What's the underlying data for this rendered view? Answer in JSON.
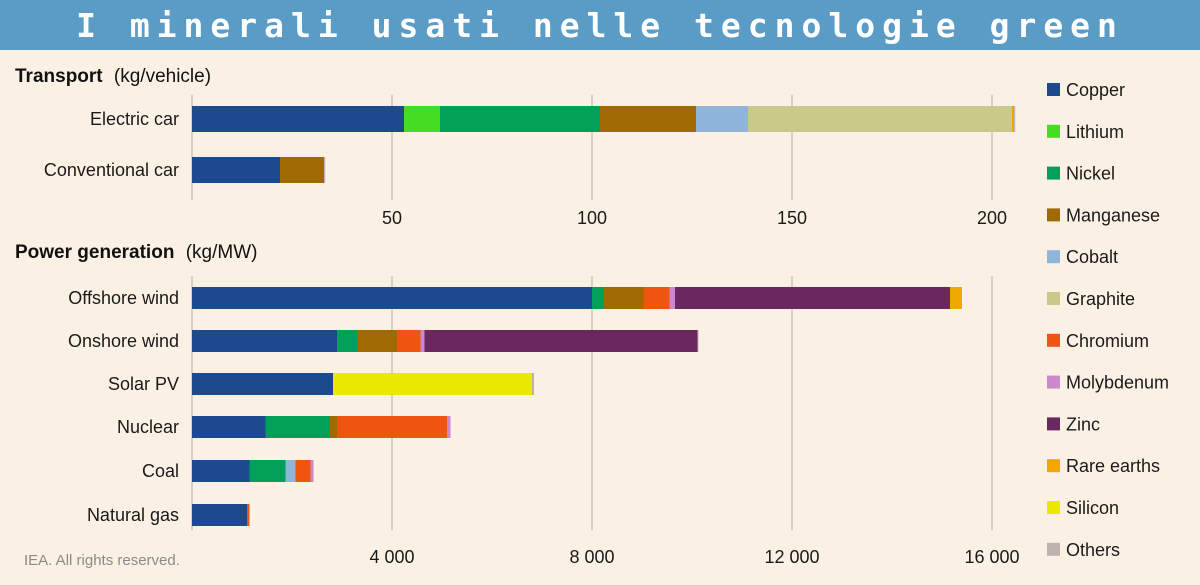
{
  "header": {
    "title": "I minerali usati nelle tecnologie green"
  },
  "footer": {
    "text": "IEA. All rights reserved."
  },
  "colors": {
    "Copper": "#1b4a8f",
    "Lithium": "#44dd22",
    "Nickel": "#00a058",
    "Manganese": "#a06a00",
    "Cobalt": "#8fb5db",
    "Graphite": "#c8c98a",
    "Chromium": "#ee5511",
    "Molybdenum": "#cc88cc",
    "Zinc": "#6b2860",
    "Rare earths": "#f0a800",
    "Silicon": "#eaea00",
    "Others": "#bdb5ad",
    "gridline": "#cfc4b8"
  },
  "legend": {
    "position": "right",
    "items": [
      "Copper",
      "Lithium",
      "Nickel",
      "Manganese",
      "Cobalt",
      "Graphite",
      "Chromium",
      "Molybdenum",
      "Zinc",
      "Rare earths",
      "Silicon",
      "Others"
    ]
  },
  "chart_data": [
    {
      "type": "bar",
      "orientation": "horizontal",
      "stacked": true,
      "title_bold": "Transport",
      "title_unit": "(kg/vehicle)",
      "xlim": [
        0,
        210
      ],
      "xticks": [
        50,
        100,
        150,
        200
      ],
      "xtick_labels": [
        "50",
        "100",
        "150",
        "200"
      ],
      "grid": true,
      "categories": [
        "Electric car",
        "Conventional car"
      ],
      "series": [
        {
          "name": "Copper",
          "values": [
            53,
            22
          ]
        },
        {
          "name": "Lithium",
          "values": [
            9,
            0
          ]
        },
        {
          "name": "Nickel",
          "values": [
            40,
            0
          ]
        },
        {
          "name": "Manganese",
          "values": [
            24,
            11
          ]
        },
        {
          "name": "Cobalt",
          "values": [
            13,
            0
          ]
        },
        {
          "name": "Graphite",
          "values": [
            66,
            0
          ]
        },
        {
          "name": "Chromium",
          "values": [
            0,
            0
          ]
        },
        {
          "name": "Molybdenum",
          "values": [
            0,
            0
          ]
        },
        {
          "name": "Zinc",
          "values": [
            0,
            0
          ]
        },
        {
          "name": "Rare earths",
          "values": [
            0.5,
            0
          ]
        },
        {
          "name": "Silicon",
          "values": [
            0,
            0
          ]
        },
        {
          "name": "Others",
          "values": [
            0.3,
            0.3
          ]
        }
      ]
    },
    {
      "type": "bar",
      "orientation": "horizontal",
      "stacked": true,
      "title_bold": "Power generation",
      "title_unit": "(kg/MW)",
      "xlim": [
        0,
        16500
      ],
      "xticks": [
        4000,
        8000,
        12000,
        16000
      ],
      "xtick_labels": [
        "4 000",
        "8 000",
        "12 000",
        "16 000"
      ],
      "grid": true,
      "categories": [
        "Offshore wind",
        "Onshore wind",
        "Solar PV",
        "Nuclear",
        "Coal",
        "Natural gas"
      ],
      "series": [
        {
          "name": "Copper",
          "values": [
            8000,
            2900,
            2820,
            1470,
            1150,
            1100
          ]
        },
        {
          "name": "Lithium",
          "values": [
            0,
            0,
            0,
            0,
            0,
            0
          ]
        },
        {
          "name": "Nickel",
          "values": [
            240,
            400,
            0,
            1280,
            720,
            0
          ]
        },
        {
          "name": "Manganese",
          "values": [
            790,
            800,
            0,
            150,
            0,
            0
          ]
        },
        {
          "name": "Cobalt",
          "values": [
            0,
            0,
            0,
            0,
            200,
            0
          ]
        },
        {
          "name": "Graphite",
          "values": [
            0,
            0,
            0,
            0,
            0,
            0
          ]
        },
        {
          "name": "Chromium",
          "values": [
            520,
            470,
            0,
            2200,
            300,
            50
          ]
        },
        {
          "name": "Molybdenum",
          "values": [
            110,
            80,
            0,
            70,
            60,
            0
          ]
        },
        {
          "name": "Zinc",
          "values": [
            5500,
            5460,
            0,
            0,
            0,
            0
          ]
        },
        {
          "name": "Rare earths",
          "values": [
            240,
            0,
            0,
            0,
            0,
            0
          ]
        },
        {
          "name": "Silicon",
          "values": [
            0,
            0,
            3980,
            0,
            0,
            0
          ]
        },
        {
          "name": "Others",
          "values": [
            0,
            20,
            40,
            0,
            0,
            0
          ]
        }
      ]
    }
  ]
}
